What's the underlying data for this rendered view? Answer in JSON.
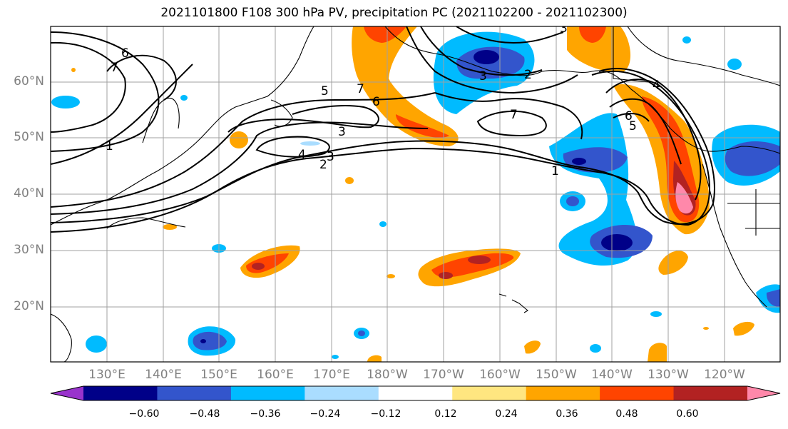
{
  "title": "2021101800 F108 300 hPa PV, precipitation PC (2021102200 - 2021102300)",
  "lat_labels": [
    "60°N",
    "50°N",
    "40°N",
    "30°N",
    "20°N"
  ],
  "lon_labels": [
    "130°E",
    "140°E",
    "150°E",
    "160°E",
    "170°E",
    "180°W",
    "170°W",
    "160°W",
    "150°W",
    "140°W",
    "130°W",
    "120°W"
  ],
  "contour_labels": [
    "6",
    "7",
    "5",
    "7",
    "6",
    "3",
    "3",
    "4",
    "2",
    "1",
    "2",
    "3",
    "3",
    "7",
    "4",
    "6",
    "5",
    "1"
  ],
  "colorbar": {
    "ticks": [
      "−0.60",
      "−0.48",
      "−0.36",
      "−0.24",
      "−0.12",
      "0.12",
      "0.24",
      "0.36",
      "0.48",
      "0.60"
    ],
    "colors": [
      "#9933cc",
      "#000088",
      "#3355cc",
      "#00bbff",
      "#aaddff",
      "#ffffff",
      "#ffe680",
      "#ffa500",
      "#ff4400",
      "#b22222",
      "#ff88aa"
    ]
  }
}
